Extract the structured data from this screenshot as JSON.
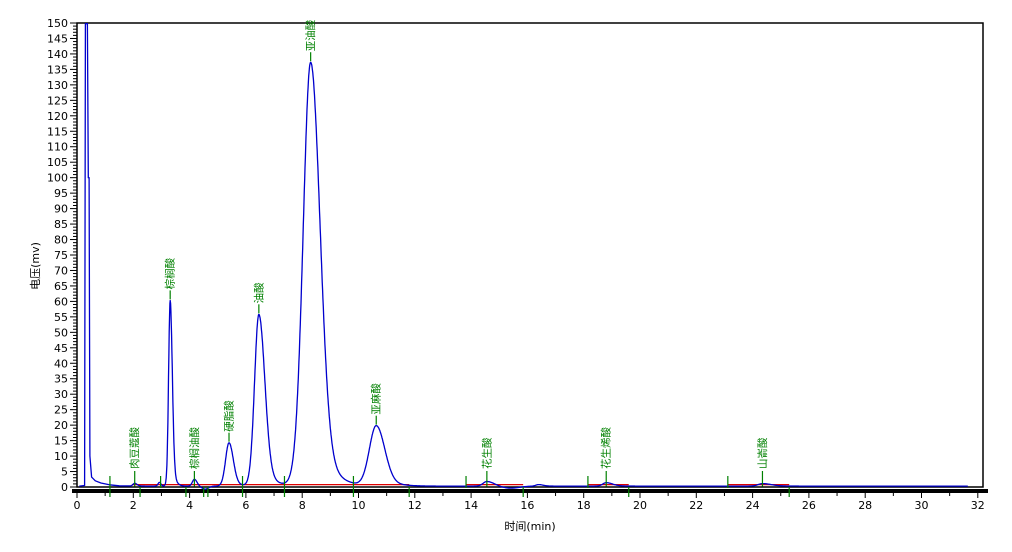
{
  "chart_data": {
    "type": "line",
    "title": "",
    "xlabel": "时间(min)",
    "ylabel": "电压(mv)",
    "xlim": [
      0,
      32
    ],
    "ylim": [
      0,
      150
    ],
    "grid": "off",
    "legend": "none",
    "x_tick_step": 2,
    "x_minor_tick_step": 1,
    "y_tick_step": 5,
    "y_minor_tick_step": 1,
    "x_tick_labels": [
      "0",
      "2",
      "4",
      "6",
      "8",
      "10",
      "12",
      "14",
      "16",
      "18",
      "20",
      "22",
      "24",
      "26",
      "28",
      "30",
      "32"
    ],
    "y_tick_labels": [
      "0",
      "5",
      "10",
      "15",
      "20",
      "25",
      "30",
      "35",
      "40",
      "45",
      "50",
      "55",
      "60",
      "65",
      "70",
      "75",
      "80",
      "85",
      "90",
      "95",
      "100",
      "105",
      "110",
      "115",
      "120",
      "125",
      "130",
      "135",
      "140",
      "145",
      "150"
    ],
    "colors": {
      "trace": "#0000cd",
      "integration_baseline": "#dd0000",
      "peak_marks": "#008000",
      "axis": "#000000",
      "background": "#ffffff"
    },
    "peaks": [
      {
        "name": "肉豆蔻酸",
        "rt_min": 2.05,
        "height_mv": 0.9,
        "sigma_left": 0.06,
        "sigma_right": 0.08
      },
      {
        "name": "棕榈酸",
        "rt_min": 3.31,
        "height_mv": 60.0,
        "sigma_left": 0.055,
        "sigma_right": 0.075
      },
      {
        "name": "棕榈油酸",
        "rt_min": 4.17,
        "height_mv": 2.2,
        "sigma_left": 0.07,
        "sigma_right": 0.09
      },
      {
        "name": "硬脂酸",
        "rt_min": 5.4,
        "height_mv": 14.0,
        "sigma_left": 0.12,
        "sigma_right": 0.15
      },
      {
        "name": "油酸",
        "rt_min": 6.46,
        "height_mv": 55.5,
        "sigma_left": 0.15,
        "sigma_right": 0.21
      },
      {
        "name": "亚油酸",
        "rt_min": 8.3,
        "height_mv": 137.0,
        "sigma_left": 0.26,
        "sigma_right": 0.33
      },
      {
        "name": "亚麻酸",
        "rt_min": 10.63,
        "height_mv": 19.5,
        "sigma_left": 0.24,
        "sigma_right": 0.3
      },
      {
        "name": "花生酸",
        "rt_min": 14.56,
        "height_mv": 1.5,
        "sigma_left": 0.13,
        "sigma_right": 0.25
      },
      {
        "name": "花生烯酸",
        "rt_min": 18.8,
        "height_mv": 1.1,
        "sigma_left": 0.12,
        "sigma_right": 0.22
      },
      {
        "name": "山嵛酸",
        "rt_min": 24.35,
        "height_mv": 0.8,
        "sigma_left": 0.15,
        "sigma_right": 0.3
      }
    ],
    "solvent_front_trace": [
      [
        0.08,
        0.3
      ],
      [
        0.27,
        0.5
      ],
      [
        0.3,
        150
      ],
      [
        0.37,
        150
      ],
      [
        0.4,
        100
      ],
      [
        0.43,
        100
      ],
      [
        0.46,
        10
      ],
      [
        0.52,
        3.2
      ],
      [
        0.65,
        2.0
      ],
      [
        0.85,
        1.3
      ],
      [
        1.15,
        0.7
      ],
      [
        1.5,
        0.4
      ],
      [
        1.9,
        0.35
      ]
    ],
    "unlabeled_features": [
      {
        "rt_min": 2.93,
        "height_mv": 1.2,
        "sigma_left": 0.05,
        "sigma_right": 0.05
      },
      {
        "rt_min": 4.55,
        "height_mv": -1.0,
        "sigma_left": 0.12,
        "sigma_right": 0.12
      },
      {
        "rt_min": 15.4,
        "height_mv": -0.7,
        "sigma_left": 0.3,
        "sigma_right": 0.3
      },
      {
        "rt_min": 16.4,
        "height_mv": 0.5,
        "sigma_left": 0.1,
        "sigma_right": 0.15
      }
    ],
    "integration_baseline_segments_min": [
      [
        1.95,
        11.8
      ],
      [
        13.82,
        15.85
      ],
      [
        18.15,
        19.6
      ],
      [
        23.12,
        25.3
      ]
    ],
    "integration_marks": [
      {
        "t_min": 1.17,
        "type": "both"
      },
      {
        "t_min": 2.24,
        "type": "end"
      },
      {
        "t_min": 2.97,
        "type": "start"
      },
      {
        "t_min": 3.87,
        "type": "end"
      },
      {
        "t_min": 4.5,
        "type": "end"
      },
      {
        "t_min": 4.65,
        "type": "end"
      },
      {
        "t_min": 5.88,
        "type": "both"
      },
      {
        "t_min": 7.37,
        "type": "both"
      },
      {
        "t_min": 9.82,
        "type": "both"
      },
      {
        "t_min": 11.8,
        "type": "end"
      },
      {
        "t_min": 13.82,
        "type": "start"
      },
      {
        "t_min": 15.85,
        "type": "end"
      },
      {
        "t_min": 18.15,
        "type": "start"
      },
      {
        "t_min": 19.6,
        "type": "end"
      },
      {
        "t_min": 23.12,
        "type": "start"
      },
      {
        "t_min": 25.3,
        "type": "end"
      }
    ],
    "trace_end_min": 31.65
  }
}
